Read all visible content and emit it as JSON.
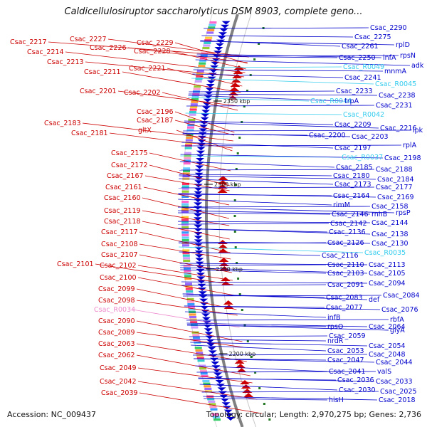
{
  "title": "Caldicellulosiruptor saccharolyticus DSM 8903, complete geno...",
  "footer": {
    "accession": "Accession: NC_009437",
    "topology": "Topology: circular; Length: 2,970,275 bp; Genes: 2,736"
  },
  "colors": {
    "minus_strand": "#cc0000",
    "plus_strand": "#0000cc",
    "rna": "#33ccee",
    "pseudo": "#ee88cc",
    "backbone": "#808080"
  },
  "scale_marks": [
    "2350 kbp",
    "2300 kbp",
    "2250 kbp",
    "2200 kbp"
  ],
  "left_labels": [
    {
      "text": "Csac_2217",
      "color": "red"
    },
    {
      "text": "Csac_2227",
      "color": "red"
    },
    {
      "text": "Csac_2229",
      "color": "red"
    },
    {
      "text": "Csac_2226",
      "color": "red"
    },
    {
      "text": "Csac_2228",
      "color": "red"
    },
    {
      "text": "Csac_2214",
      "color": "red"
    },
    {
      "text": "Csac_2213",
      "color": "red"
    },
    {
      "text": "Csac_2221",
      "color": "red"
    },
    {
      "text": "Csac_2211",
      "color": "red"
    },
    {
      "text": "Csac_2201",
      "color": "red"
    },
    {
      "text": "Csac_2202",
      "color": "red"
    },
    {
      "text": "Csac_2196",
      "color": "red"
    },
    {
      "text": "Csac_2187",
      "color": "red"
    },
    {
      "text": "Csac_2183",
      "color": "red"
    },
    {
      "text": "gltX",
      "color": "red"
    },
    {
      "text": "Csac_2181",
      "color": "red"
    },
    {
      "text": "Csac_2175",
      "color": "red"
    },
    {
      "text": "Csac_2172",
      "color": "red"
    },
    {
      "text": "Csac_2167",
      "color": "red"
    },
    {
      "text": "Csac_2161",
      "color": "red"
    },
    {
      "text": "Csac_2160",
      "color": "red"
    },
    {
      "text": "Csac_2119",
      "color": "red"
    },
    {
      "text": "Csac_2118",
      "color": "red"
    },
    {
      "text": "Csac_2117",
      "color": "red"
    },
    {
      "text": "Csac_2108",
      "color": "red"
    },
    {
      "text": "Csac_2107",
      "color": "red"
    },
    {
      "text": "Csac_2101",
      "color": "red"
    },
    {
      "text": "Csac_2102",
      "color": "red"
    },
    {
      "text": "Csac_2100",
      "color": "red"
    },
    {
      "text": "Csac_2099",
      "color": "red"
    },
    {
      "text": "Csac_2098",
      "color": "red"
    },
    {
      "text": "Csac_R0034",
      "color": "pink"
    },
    {
      "text": "Csac_2090",
      "color": "red"
    },
    {
      "text": "Csac_2089",
      "color": "red"
    },
    {
      "text": "Csac_2063",
      "color": "red"
    },
    {
      "text": "Csac_2062",
      "color": "red"
    },
    {
      "text": "Csac_2049",
      "color": "red"
    },
    {
      "text": "Csac_2042",
      "color": "red"
    },
    {
      "text": "Csac_2039",
      "color": "red"
    }
  ],
  "right_labels": [
    {
      "text": "Csac_2290",
      "color": "blue"
    },
    {
      "text": "Csac_2275",
      "color": "blue"
    },
    {
      "text": "rplD",
      "color": "blue"
    },
    {
      "text": "Csac_2261",
      "color": "blue"
    },
    {
      "text": "rpsN",
      "color": "blue"
    },
    {
      "text": "Csac_2250",
      "color": "blue"
    },
    {
      "text": "infA",
      "color": "blue"
    },
    {
      "text": "adk",
      "color": "blue"
    },
    {
      "text": "Csac_R0049",
      "color": "cyan"
    },
    {
      "text": "mnmA",
      "color": "blue"
    },
    {
      "text": "Csac_2241",
      "color": "blue"
    },
    {
      "text": "Csac_R0045",
      "color": "cyan"
    },
    {
      "text": "Csac_2233",
      "color": "blue"
    },
    {
      "text": "Csac_2238",
      "color": "blue"
    },
    {
      "text": "Csac_R0044",
      "color": "cyan"
    },
    {
      "text": "trpA",
      "color": "blue"
    },
    {
      "text": "Csac_2231",
      "color": "blue"
    },
    {
      "text": "Csac_R0042",
      "color": "cyan"
    },
    {
      "text": "Csac_2209",
      "color": "blue"
    },
    {
      "text": "Csac_2216",
      "color": "blue"
    },
    {
      "text": "ipk",
      "color": "blue"
    },
    {
      "text": "Csac_2200",
      "color": "blue"
    },
    {
      "text": "Csac_2203",
      "color": "blue"
    },
    {
      "text": "Csac_2197",
      "color": "blue"
    },
    {
      "text": "rplA",
      "color": "blue"
    },
    {
      "text": "Csac_R0037",
      "color": "cyan"
    },
    {
      "text": "Csac_2198",
      "color": "blue"
    },
    {
      "text": "Csac_2185",
      "color": "blue"
    },
    {
      "text": "Csac_2188",
      "color": "blue"
    },
    {
      "text": "Csac_2180",
      "color": "blue"
    },
    {
      "text": "Csac_2184",
      "color": "blue"
    },
    {
      "text": "Csac_2173",
      "color": "blue"
    },
    {
      "text": "Csac_2177",
      "color": "blue"
    },
    {
      "text": "Csac_2164",
      "color": "blue"
    },
    {
      "text": "Csac_2169",
      "color": "blue"
    },
    {
      "text": "rimM",
      "color": "blue"
    },
    {
      "text": "Csac_2158",
      "color": "blue"
    },
    {
      "text": "Csac_2146",
      "color": "blue"
    },
    {
      "text": "rnhB",
      "color": "blue"
    },
    {
      "text": "rpsP",
      "color": "blue"
    },
    {
      "text": "Csac_2142",
      "color": "blue"
    },
    {
      "text": "Csac_2144",
      "color": "blue"
    },
    {
      "text": "Csac_2136",
      "color": "blue"
    },
    {
      "text": "Csac_2138",
      "color": "blue"
    },
    {
      "text": "Csac_2126",
      "color": "blue"
    },
    {
      "text": "Csac_2130",
      "color": "blue"
    },
    {
      "text": "Csac_2116",
      "color": "blue"
    },
    {
      "text": "Csac_R0035",
      "color": "cyan"
    },
    {
      "text": "Csac_2110",
      "color": "blue"
    },
    {
      "text": "Csac_2113",
      "color": "blue"
    },
    {
      "text": "Csac_2103",
      "color": "blue"
    },
    {
      "text": "Csac_2105",
      "color": "blue"
    },
    {
      "text": "Csac_2091",
      "color": "blue"
    },
    {
      "text": "Csac_2094",
      "color": "blue"
    },
    {
      "text": "Csac_2083",
      "color": "blue"
    },
    {
      "text": "def",
      "color": "blue"
    },
    {
      "text": "Csac_2084",
      "color": "blue"
    },
    {
      "text": "Csac_2077",
      "color": "blue"
    },
    {
      "text": "Csac_2076",
      "color": "blue"
    },
    {
      "text": "infB",
      "color": "blue"
    },
    {
      "text": "rbfA",
      "color": "blue"
    },
    {
      "text": "rpsO",
      "color": "blue"
    },
    {
      "text": "Csac_2064",
      "color": "blue"
    },
    {
      "text": "glyA",
      "color": "blue"
    },
    {
      "text": "Csac_2059",
      "color": "blue"
    },
    {
      "text": "nrdR",
      "color": "blue"
    },
    {
      "text": "Csac_2054",
      "color": "blue"
    },
    {
      "text": "Csac_2053",
      "color": "blue"
    },
    {
      "text": "Csac_2048",
      "color": "blue"
    },
    {
      "text": "Csac_2047",
      "color": "blue"
    },
    {
      "text": "Csac_2044",
      "color": "blue"
    },
    {
      "text": "Csac_2041",
      "color": "blue"
    },
    {
      "text": "valS",
      "color": "blue"
    },
    {
      "text": "Csac_2036",
      "color": "blue"
    },
    {
      "text": "Csac_2033",
      "color": "blue"
    },
    {
      "text": "Csac_2030",
      "color": "blue"
    },
    {
      "text": "Csac_2025",
      "color": "blue"
    },
    {
      "text": "hisH",
      "color": "blue"
    },
    {
      "text": "Csac_2018",
      "color": "blue"
    }
  ]
}
